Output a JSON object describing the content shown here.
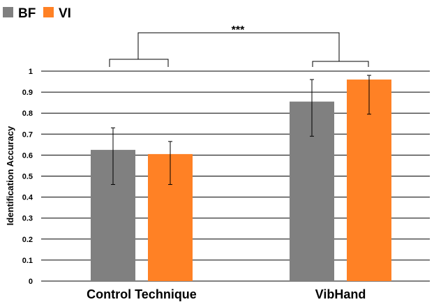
{
  "chart_data": {
    "type": "bar",
    "categories": [
      "Control Technique",
      "VibHand"
    ],
    "series": [
      {
        "name": "BF",
        "color": "#808080",
        "values": [
          0.625,
          0.855
        ],
        "err_low": [
          0.46,
          0.69
        ],
        "err_high": [
          0.73,
          0.96
        ]
      },
      {
        "name": "VI",
        "color": "#ff8125",
        "values": [
          0.605,
          0.96
        ],
        "err_low": [
          0.46,
          0.795
        ],
        "err_high": [
          0.665,
          0.98
        ]
      }
    ],
    "title": "",
    "xlabel": "",
    "ylabel": "Identification Accuracy",
    "ylim": [
      0,
      1
    ],
    "yticks": [
      "0",
      "0.1",
      "0.2",
      "0.3",
      "0.4",
      "0.5",
      "0.6",
      "0.7",
      "0.8",
      "0.9",
      "1"
    ],
    "grid": true,
    "legend_position": "top-left",
    "annotation": "***"
  }
}
